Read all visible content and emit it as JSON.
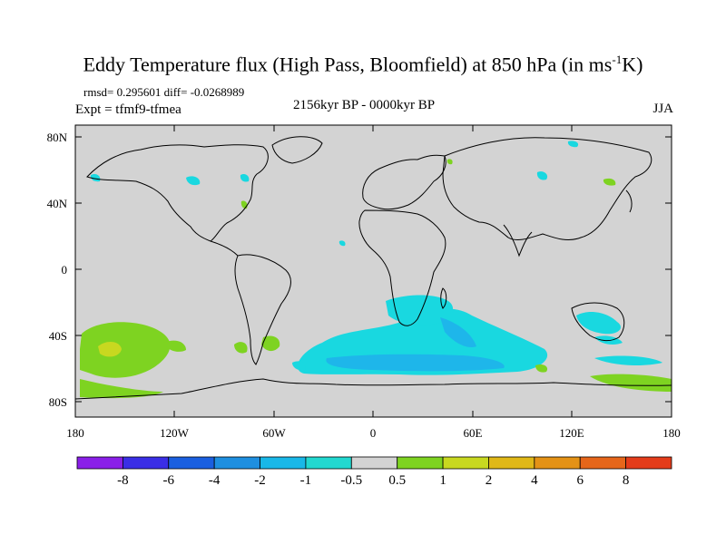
{
  "title": {
    "main": "Eddy Temperature flux (High Pass, Bloomfield) at 850 hPa (in ms",
    "sup": "-1",
    "tail": "K)"
  },
  "stats": "rmsd= 0.295601 diff= -0.0268989",
  "experiment": "Expt = tfmf9-tfmea",
  "period": "2156kyr BP - 0000kyr BP",
  "season": "JJA",
  "lat_ticks": [
    "80N",
    "40N",
    "0",
    "40S",
    "80S"
  ],
  "lon_ticks": [
    "180",
    "120W",
    "60W",
    "0",
    "60E",
    "120E",
    "180"
  ],
  "colorbar": {
    "levels": [
      "-8",
      "-6",
      "-4",
      "-2",
      "-1",
      "-0.5",
      "0.5",
      "1",
      "2",
      "4",
      "6",
      "8"
    ],
    "colors": [
      "#8a1fe8",
      "#3a2ee6",
      "#1a5fe0",
      "#1e8fe0",
      "#19b8e8",
      "#22d8d0",
      "#d3d3d3",
      "#7ed321",
      "#c8d820",
      "#e0b818",
      "#e49216",
      "#e6661a",
      "#e43c1a"
    ]
  },
  "map": {
    "background": "#d3d3d3",
    "coast_color": "#000000"
  }
}
